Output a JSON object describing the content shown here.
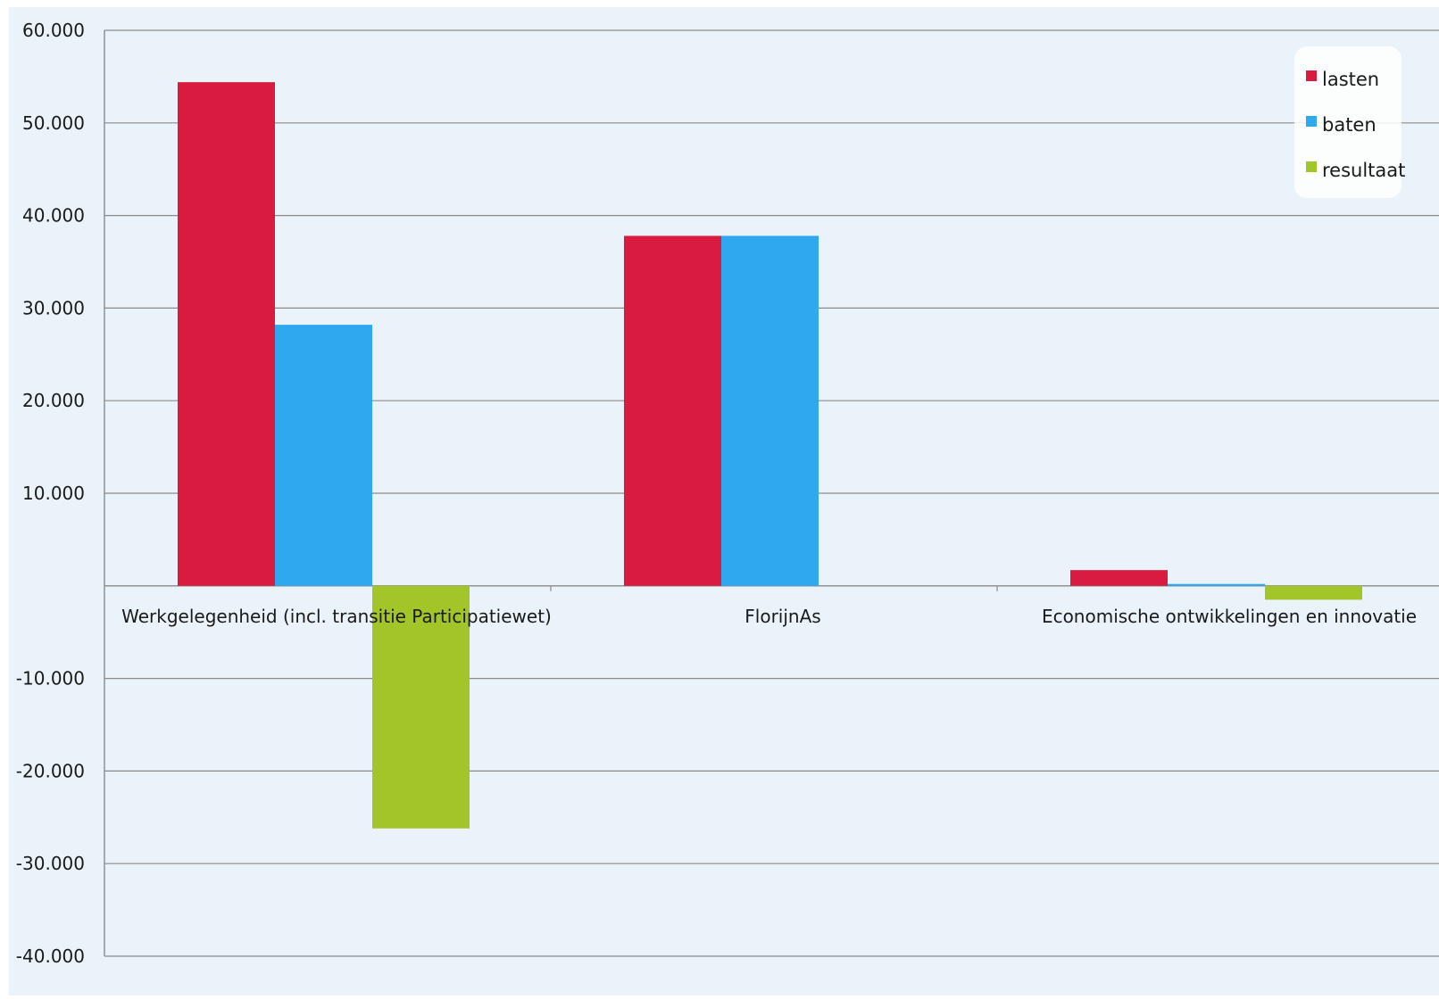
{
  "chart_data": {
    "type": "bar",
    "categories": [
      "Werkgelegenheid (incl. transitie Participatiewet)",
      "FlorijnAs",
      "Economische ontwikkelingen en innovatie"
    ],
    "series": [
      {
        "name": "lasten",
        "color": "#d81b3f",
        "values": [
          54400,
          37800,
          1700
        ]
      },
      {
        "name": "baten",
        "color": "#2fa8f0",
        "values": [
          28200,
          37800,
          200
        ]
      },
      {
        "name": "resultaat",
        "color": "#a2c52a",
        "values": [
          -26200,
          0,
          -1500
        ]
      }
    ],
    "ylim": [
      -40000,
      60000
    ],
    "yticks": [
      -40000,
      -30000,
      -20000,
      -10000,
      10000,
      20000,
      30000,
      40000,
      50000,
      60000
    ],
    "ytick_labels": [
      "-40.000",
      "-30.000",
      "-20.000",
      "-10.000",
      "10.000",
      "20.000",
      "30.000",
      "40.000",
      "50.000",
      "60.000"
    ],
    "grid": true,
    "legend_position": "top-right",
    "title": "",
    "xlabel": "",
    "ylabel": "",
    "colors": {
      "plot_background": "#e9f3f9",
      "grid": "#8a8a8a"
    }
  }
}
